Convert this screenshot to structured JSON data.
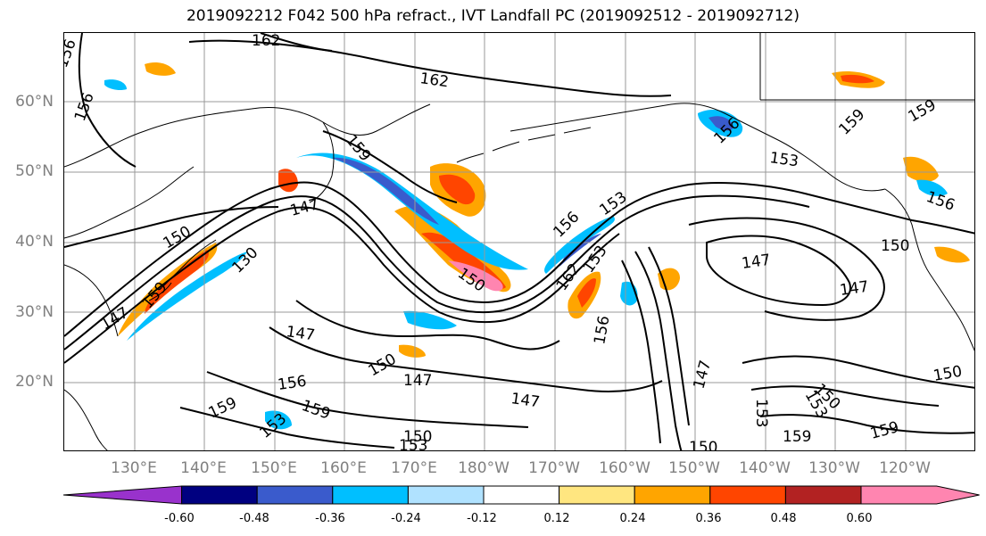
{
  "title": "2019092212 F042 500 hPa refract., IVT Landfall PC (2019092512 - 2019092712)",
  "lat_labels": [
    "60°N",
    "50°N",
    "40°N",
    "30°N",
    "20°N"
  ],
  "lon_labels": [
    "130°E",
    "140°E",
    "150°E",
    "160°E",
    "170°E",
    "180°W",
    "170°W",
    "160°W",
    "150°W",
    "140°W",
    "130°W",
    "120°W"
  ],
  "contour_labels": [
    "162",
    "162",
    "156",
    "156",
    "153",
    "159",
    "156",
    "159",
    "147",
    "156",
    "150",
    "153",
    "150",
    "147",
    "147",
    "150",
    "130",
    "147",
    "150",
    "147",
    "156",
    "159",
    "159",
    "153",
    "150",
    "147",
    "153",
    "147",
    "153",
    "153",
    "150",
    "159",
    "159",
    "150",
    "147",
    "150",
    "156",
    "162",
    "153",
    "156",
    "159",
    "159"
  ],
  "colorbar": {
    "ticks": [
      "-0.60",
      "-0.48",
      "-0.36",
      "-0.24",
      "-0.12",
      "0.12",
      "0.24",
      "0.36",
      "0.48",
      "0.60"
    ],
    "colors": [
      "#9932cc",
      "#000080",
      "#3a5bcc",
      "#00bfff",
      "#b0e2ff",
      "#ffffff",
      "#ffe680",
      "#ffa500",
      "#ff4500",
      "#b22222",
      "#ff85b0"
    ]
  },
  "colors": {
    "contour": "#000000",
    "grid": "#999999",
    "coast": "#000000",
    "axis_label": "#808080"
  }
}
